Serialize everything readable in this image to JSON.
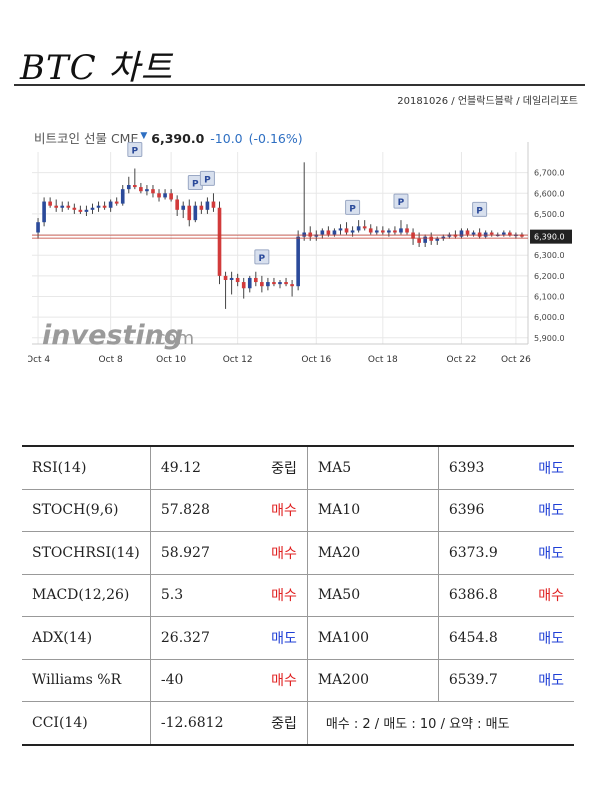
{
  "header": {
    "title": "BTC 차트",
    "source": "20181026 / 언블락드블락 / 데일리리포트"
  },
  "chart": {
    "name": "비트코인 선물 CME",
    "price": "6,390.0",
    "change": "-10.0",
    "change_pct": "(-0.16%)",
    "change_arrow": "▼",
    "watermark": "investing",
    "watermark_suffix": ".com",
    "current_label": "6,390.0",
    "marker_label": "P",
    "colors": {
      "up": "#2b4a9a",
      "down": "#d23b3b",
      "hline": "#c0392b",
      "grid": "#e8e8e8"
    }
  },
  "chart_data": {
    "type": "candlestick",
    "title": "비트코인 선물 CME",
    "yticks": [
      "6,700.0",
      "6,600.0",
      "6,500.0",
      "6,400.0",
      "6,300.0",
      "6,200.0",
      "6,100.0",
      "6,000.0",
      "5,900.0"
    ],
    "ytick_values": [
      6700,
      6600,
      6500,
      6400,
      6300,
      6200,
      6100,
      6000,
      5900
    ],
    "xticks": [
      "Oct 4",
      "Oct 8",
      "Oct 10",
      "Oct 12",
      "Oct 16",
      "Oct 18",
      "Oct 22",
      "Oct 26"
    ],
    "xtick_index": [
      0,
      12,
      22,
      33,
      46,
      57,
      70,
      79
    ],
    "ylim": [
      5870,
      6800
    ],
    "xlim": [
      -1,
      81
    ],
    "current_value": 6390,
    "marker_index": [
      16,
      26,
      28,
      37,
      52,
      60,
      73
    ],
    "candles": [
      {
        "o": 6410,
        "h": 6480,
        "l": 6380,
        "c": 6460
      },
      {
        "o": 6460,
        "h": 6580,
        "l": 6440,
        "c": 6560
      },
      {
        "o": 6560,
        "h": 6580,
        "l": 6530,
        "c": 6540
      },
      {
        "o": 6540,
        "h": 6570,
        "l": 6510,
        "c": 6530
      },
      {
        "o": 6530,
        "h": 6560,
        "l": 6510,
        "c": 6540
      },
      {
        "o": 6540,
        "h": 6560,
        "l": 6520,
        "c": 6530
      },
      {
        "o": 6530,
        "h": 6550,
        "l": 6500,
        "c": 6520
      },
      {
        "o": 6520,
        "h": 6540,
        "l": 6500,
        "c": 6510
      },
      {
        "o": 6510,
        "h": 6540,
        "l": 6490,
        "c": 6520
      },
      {
        "o": 6520,
        "h": 6550,
        "l": 6500,
        "c": 6530
      },
      {
        "o": 6530,
        "h": 6560,
        "l": 6510,
        "c": 6540
      },
      {
        "o": 6540,
        "h": 6560,
        "l": 6520,
        "c": 6530
      },
      {
        "o": 6530,
        "h": 6570,
        "l": 6510,
        "c": 6560
      },
      {
        "o": 6560,
        "h": 6580,
        "l": 6540,
        "c": 6550
      },
      {
        "o": 6550,
        "h": 6640,
        "l": 6540,
        "c": 6620
      },
      {
        "o": 6620,
        "h": 6680,
        "l": 6600,
        "c": 6640
      },
      {
        "o": 6640,
        "h": 6720,
        "l": 6620,
        "c": 6630
      },
      {
        "o": 6630,
        "h": 6650,
        "l": 6600,
        "c": 6610
      },
      {
        "o": 6610,
        "h": 6640,
        "l": 6590,
        "c": 6620
      },
      {
        "o": 6620,
        "h": 6640,
        "l": 6580,
        "c": 6600
      },
      {
        "o": 6600,
        "h": 6620,
        "l": 6560,
        "c": 6580
      },
      {
        "o": 6580,
        "h": 6620,
        "l": 6570,
        "c": 6600
      },
      {
        "o": 6600,
        "h": 6620,
        "l": 6560,
        "c": 6570
      },
      {
        "o": 6570,
        "h": 6590,
        "l": 6490,
        "c": 6520
      },
      {
        "o": 6520,
        "h": 6560,
        "l": 6480,
        "c": 6540
      },
      {
        "o": 6540,
        "h": 6570,
        "l": 6440,
        "c": 6470
      },
      {
        "o": 6470,
        "h": 6560,
        "l": 6460,
        "c": 6540
      },
      {
        "o": 6540,
        "h": 6560,
        "l": 6500,
        "c": 6520
      },
      {
        "o": 6520,
        "h": 6580,
        "l": 6500,
        "c": 6560
      },
      {
        "o": 6560,
        "h": 6600,
        "l": 6510,
        "c": 6530
      },
      {
        "o": 6530,
        "h": 6560,
        "l": 6160,
        "c": 6200
      },
      {
        "o": 6200,
        "h": 6220,
        "l": 6040,
        "c": 6180
      },
      {
        "o": 6180,
        "h": 6220,
        "l": 6110,
        "c": 6190
      },
      {
        "o": 6190,
        "h": 6210,
        "l": 6150,
        "c": 6170
      },
      {
        "o": 6170,
        "h": 6190,
        "l": 6090,
        "c": 6140
      },
      {
        "o": 6140,
        "h": 6200,
        "l": 6120,
        "c": 6190
      },
      {
        "o": 6190,
        "h": 6220,
        "l": 6150,
        "c": 6170
      },
      {
        "o": 6170,
        "h": 6200,
        "l": 6120,
        "c": 6150
      },
      {
        "o": 6150,
        "h": 6190,
        "l": 6130,
        "c": 6170
      },
      {
        "o": 6170,
        "h": 6190,
        "l": 6150,
        "c": 6160
      },
      {
        "o": 6160,
        "h": 6180,
        "l": 6140,
        "c": 6170
      },
      {
        "o": 6170,
        "h": 6190,
        "l": 6150,
        "c": 6160
      },
      {
        "o": 6160,
        "h": 6180,
        "l": 6100,
        "c": 6150
      },
      {
        "o": 6150,
        "h": 6420,
        "l": 6130,
        "c": 6390
      },
      {
        "o": 6390,
        "h": 6750,
        "l": 6370,
        "c": 6410
      },
      {
        "o": 6410,
        "h": 6440,
        "l": 6370,
        "c": 6390
      },
      {
        "o": 6390,
        "h": 6420,
        "l": 6370,
        "c": 6400
      },
      {
        "o": 6400,
        "h": 6430,
        "l": 6380,
        "c": 6420
      },
      {
        "o": 6420,
        "h": 6440,
        "l": 6390,
        "c": 6400
      },
      {
        "o": 6400,
        "h": 6430,
        "l": 6390,
        "c": 6420
      },
      {
        "o": 6420,
        "h": 6450,
        "l": 6400,
        "c": 6430
      },
      {
        "o": 6430,
        "h": 6460,
        "l": 6400,
        "c": 6410
      },
      {
        "o": 6410,
        "h": 6440,
        "l": 6390,
        "c": 6420
      },
      {
        "o": 6420,
        "h": 6470,
        "l": 6410,
        "c": 6440
      },
      {
        "o": 6440,
        "h": 6470,
        "l": 6420,
        "c": 6430
      },
      {
        "o": 6430,
        "h": 6450,
        "l": 6400,
        "c": 6410
      },
      {
        "o": 6410,
        "h": 6440,
        "l": 6400,
        "c": 6420
      },
      {
        "o": 6420,
        "h": 6440,
        "l": 6400,
        "c": 6410
      },
      {
        "o": 6410,
        "h": 6430,
        "l": 6390,
        "c": 6420
      },
      {
        "o": 6420,
        "h": 6440,
        "l": 6400,
        "c": 6410
      },
      {
        "o": 6410,
        "h": 6470,
        "l": 6400,
        "c": 6430
      },
      {
        "o": 6430,
        "h": 6450,
        "l": 6400,
        "c": 6410
      },
      {
        "o": 6410,
        "h": 6430,
        "l": 6350,
        "c": 6380
      },
      {
        "o": 6380,
        "h": 6410,
        "l": 6340,
        "c": 6360
      },
      {
        "o": 6360,
        "h": 6400,
        "l": 6340,
        "c": 6390
      },
      {
        "o": 6390,
        "h": 6410,
        "l": 6350,
        "c": 6370
      },
      {
        "o": 6370,
        "h": 6390,
        "l": 6350,
        "c": 6380
      },
      {
        "o": 6380,
        "h": 6400,
        "l": 6370,
        "c": 6390
      },
      {
        "o": 6390,
        "h": 6410,
        "l": 6380,
        "c": 6400
      },
      {
        "o": 6400,
        "h": 6420,
        "l": 6380,
        "c": 6390
      },
      {
        "o": 6390,
        "h": 6430,
        "l": 6380,
        "c": 6420
      },
      {
        "o": 6420,
        "h": 6430,
        "l": 6390,
        "c": 6400
      },
      {
        "o": 6400,
        "h": 6420,
        "l": 6390,
        "c": 6410
      },
      {
        "o": 6410,
        "h": 6430,
        "l": 6380,
        "c": 6390
      },
      {
        "o": 6390,
        "h": 6420,
        "l": 6380,
        "c": 6410
      },
      {
        "o": 6410,
        "h": 6420,
        "l": 6390,
        "c": 6400
      },
      {
        "o": 6400,
        "h": 6410,
        "l": 6390,
        "c": 6400
      },
      {
        "o": 6400,
        "h": 6420,
        "l": 6390,
        "c": 6410
      },
      {
        "o": 6410,
        "h": 6420,
        "l": 6390,
        "c": 6395
      },
      {
        "o": 6395,
        "h": 6410,
        "l": 6380,
        "c": 6400
      },
      {
        "o": 6400,
        "h": 6410,
        "l": 6385,
        "c": 6390
      }
    ]
  },
  "indicators": {
    "rows": [
      {
        "name": "RSI(14)",
        "value": "49.12",
        "action": "중립",
        "action_type": "neutral",
        "ma_name": "MA5",
        "ma_value": "6393",
        "ma_action": "매도",
        "ma_action_type": "sell"
      },
      {
        "name": "STOCH(9,6)",
        "value": "57.828",
        "action": "매수",
        "action_type": "buy",
        "ma_name": "MA10",
        "ma_value": "6396",
        "ma_action": "매도",
        "ma_action_type": "sell"
      },
      {
        "name": "STOCHRSI(14)",
        "value": "58.927",
        "action": "매수",
        "action_type": "buy",
        "ma_name": "MA20",
        "ma_value": "6373.9",
        "ma_action": "매도",
        "ma_action_type": "sell"
      },
      {
        "name": "MACD(12,26)",
        "value": "5.3",
        "action": "매수",
        "action_type": "buy",
        "ma_name": "MA50",
        "ma_value": "6386.8",
        "ma_action": "매수",
        "ma_action_type": "buy"
      },
      {
        "name": "ADX(14)",
        "value": "26.327",
        "action": "매도",
        "action_type": "sell",
        "ma_name": "MA100",
        "ma_value": "6454.8",
        "ma_action": "매도",
        "ma_action_type": "sell"
      },
      {
        "name": "Williams %R",
        "value": "-40",
        "action": "매수",
        "action_type": "buy",
        "ma_name": "MA200",
        "ma_value": "6539.7",
        "ma_action": "매도",
        "ma_action_type": "sell"
      }
    ],
    "last_row": {
      "name": "CCI(14)",
      "value": "-12.6812",
      "action": "중립",
      "action_type": "neutral",
      "summary_text": "매수 : 2 / 매도 : 10 / 요약 : ",
      "summary_result": "매도"
    }
  }
}
